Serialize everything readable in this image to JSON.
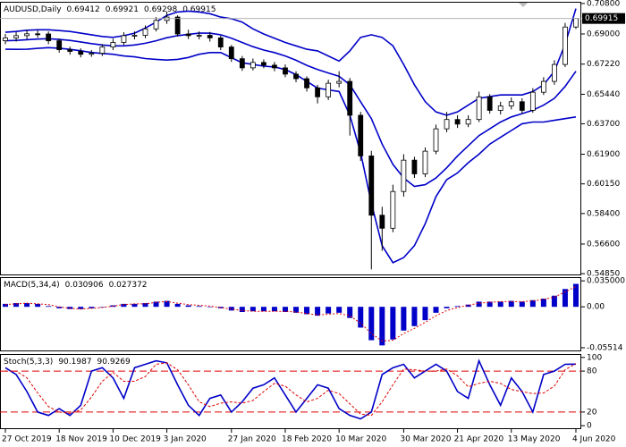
{
  "chart_data": [
    {
      "type": "candlestick",
      "title": "AUDUSD,Daily",
      "categories": [
        "27 Oct 2019",
        null,
        null,
        null,
        null,
        "18 Nov 2019",
        null,
        null,
        null,
        null,
        "10 Dec 2019",
        null,
        null,
        null,
        null,
        "3 Jan 2020",
        null,
        null,
        null,
        null,
        null,
        "27 Jan 2020",
        null,
        null,
        null,
        null,
        "18 Feb 2020",
        null,
        null,
        null,
        null,
        "10 Mar 2020",
        null,
        null,
        null,
        null,
        null,
        "30 Mar 2020",
        null,
        null,
        null,
        null,
        "21 Apr 2020",
        null,
        null,
        null,
        null,
        "13 May 2020",
        null,
        null,
        null,
        null,
        null,
        "4 Jun 2020"
      ],
      "open": [
        0.686,
        0.6877,
        0.689,
        0.6901,
        0.69,
        0.686,
        0.6807,
        0.6797,
        0.678,
        0.6786,
        0.6823,
        0.685,
        0.689,
        0.6892,
        0.693,
        0.698,
        0.7,
        0.69,
        0.689,
        0.6892,
        0.6877,
        0.6823,
        0.6754,
        0.67,
        0.6732,
        0.6716,
        0.67,
        0.6663,
        0.6636,
        0.6582,
        0.6529,
        0.6609,
        0.662,
        0.642,
        0.618,
        0.583,
        0.5753,
        0.597,
        0.6155,
        0.6074,
        0.6208,
        0.634,
        0.6395,
        0.6368,
        0.6395,
        0.6529,
        0.6449,
        0.6475,
        0.65,
        0.6449,
        0.6556,
        0.662,
        0.672,
        0.69412
      ],
      "high": [
        0.69,
        0.6912,
        0.6925,
        0.6922,
        0.6915,
        0.6872,
        0.6825,
        0.6815,
        0.6805,
        0.684,
        0.6872,
        0.691,
        0.6915,
        0.695,
        0.7,
        0.7032,
        0.701,
        0.6925,
        0.6915,
        0.6912,
        0.689,
        0.6835,
        0.677,
        0.6755,
        0.675,
        0.6735,
        0.672,
        0.668,
        0.665,
        0.66,
        0.663,
        0.668,
        0.664,
        0.644,
        0.621,
        0.588,
        0.601,
        0.619,
        0.6175,
        0.623,
        0.6365,
        0.644,
        0.642,
        0.642,
        0.656,
        0.6545,
        0.65,
        0.6525,
        0.652,
        0.658,
        0.6645,
        0.6745,
        0.6965,
        0.69921
      ],
      "low": [
        0.684,
        0.6855,
        0.6868,
        0.6878,
        0.684,
        0.679,
        0.6778,
        0.6762,
        0.6765,
        0.677,
        0.6805,
        0.6835,
        0.6868,
        0.6875,
        0.6915,
        0.696,
        0.6885,
        0.687,
        0.6868,
        0.6855,
        0.6805,
        0.6735,
        0.6682,
        0.6685,
        0.6698,
        0.668,
        0.6645,
        0.6615,
        0.656,
        0.649,
        0.651,
        0.6585,
        0.63,
        0.615,
        0.551,
        0.562,
        0.573,
        0.594,
        0.605,
        0.6055,
        0.619,
        0.632,
        0.6345,
        0.635,
        0.638,
        0.643,
        0.6425,
        0.6455,
        0.643,
        0.6435,
        0.654,
        0.66,
        0.6705,
        0.69298
      ],
      "close": [
        0.6877,
        0.689,
        0.6901,
        0.69,
        0.686,
        0.6807,
        0.6797,
        0.678,
        0.6786,
        0.6823,
        0.685,
        0.689,
        0.6892,
        0.693,
        0.698,
        0.7,
        0.69,
        0.689,
        0.6892,
        0.6877,
        0.6823,
        0.6754,
        0.67,
        0.6732,
        0.6716,
        0.67,
        0.6663,
        0.6636,
        0.6582,
        0.6529,
        0.6609,
        0.662,
        0.642,
        0.618,
        0.583,
        0.5753,
        0.597,
        0.6155,
        0.6074,
        0.6208,
        0.634,
        0.6395,
        0.6368,
        0.6395,
        0.6529,
        0.6449,
        0.6475,
        0.65,
        0.6449,
        0.6556,
        0.662,
        0.672,
        0.6941,
        0.69915
      ],
      "series": [
        {
          "color": "#0000c8",
          "values": [
            0.691,
            0.6915,
            0.6922,
            0.6925,
            0.6925,
            0.692,
            0.6915,
            0.6905,
            0.6895,
            0.6885,
            0.688,
            0.689,
            0.6905,
            0.6935,
            0.697,
            0.701,
            0.703,
            0.7035,
            0.703,
            0.702,
            0.7,
            0.699,
            0.697,
            0.693,
            0.69,
            0.6875,
            0.685,
            0.683,
            0.681,
            0.68,
            0.677,
            0.674,
            0.68,
            0.688,
            0.6895,
            0.688,
            0.683,
            0.672,
            0.66,
            0.65,
            0.644,
            0.642,
            0.644,
            0.648,
            0.652,
            0.653,
            0.654,
            0.654,
            0.654,
            0.656,
            0.66,
            0.668,
            0.684,
            0.705
          ]
        },
        {
          "color": "#0000c8",
          "values": [
            0.686,
            0.6862,
            0.6866,
            0.687,
            0.6872,
            0.6868,
            0.6862,
            0.6853,
            0.6843,
            0.6835,
            0.683,
            0.683,
            0.6835,
            0.6845,
            0.686,
            0.6878,
            0.689,
            0.6898,
            0.6905,
            0.6905,
            0.6895,
            0.6875,
            0.685,
            0.6825,
            0.6805,
            0.679,
            0.677,
            0.6745,
            0.6715,
            0.669,
            0.667,
            0.665,
            0.66,
            0.65,
            0.64,
            0.625,
            0.613,
            0.605,
            0.6,
            0.601,
            0.605,
            0.611,
            0.618,
            0.624,
            0.63,
            0.634,
            0.638,
            0.641,
            0.643,
            0.645,
            0.648,
            0.652,
            0.659,
            0.668
          ]
        },
        {
          "color": "#0000c8",
          "values": [
            0.681,
            0.6809,
            0.681,
            0.6815,
            0.6819,
            0.6816,
            0.6809,
            0.6801,
            0.6791,
            0.6785,
            0.678,
            0.677,
            0.6765,
            0.6755,
            0.675,
            0.6746,
            0.675,
            0.6761,
            0.678,
            0.679,
            0.679,
            0.676,
            0.673,
            0.672,
            0.671,
            0.6705,
            0.669,
            0.666,
            0.662,
            0.658,
            0.657,
            0.656,
            0.642,
            0.62,
            0.59,
            0.565,
            0.555,
            0.558,
            0.565,
            0.578,
            0.594,
            0.604,
            0.608,
            0.614,
            0.619,
            0.625,
            0.629,
            0.633,
            0.637,
            0.638,
            0.638,
            0.639,
            0.64,
            0.641
          ]
        }
      ],
      "ylim": [
        0.5475,
        0.709
      ],
      "yticks": [
        {
          "value": 0.708,
          "label": "0.70800"
        },
        {
          "value": 0.69,
          "label": "0.69000"
        },
        {
          "value": 0.6722,
          "label": "0.67220"
        },
        {
          "value": 0.6544,
          "label": "0.65440"
        },
        {
          "value": 0.637,
          "label": "0.63700"
        },
        {
          "value": 0.619,
          "label": "0.61900"
        },
        {
          "value": 0.6015,
          "label": "0.60150"
        },
        {
          "value": 0.584,
          "label": "0.58400"
        },
        {
          "value": 0.566,
          "label": "0.56600"
        },
        {
          "value": 0.5485,
          "label": "0.54850"
        }
      ]
    },
    {
      "type": "macd",
      "title": "MACD(5,34,4)",
      "series": [
        {
          "color": "#0000c8",
          "values": [
            0.004,
            0.005,
            0.005,
            0.004,
            0.001,
            -0.002,
            -0.003,
            -0.003,
            -0.002,
            0.0,
            0.002,
            0.004,
            0.004,
            0.005,
            0.007,
            0.008,
            0.004,
            0.002,
            0.001,
            0.0,
            -0.002,
            -0.005,
            -0.007,
            -0.006,
            -0.006,
            -0.006,
            -0.007,
            -0.008,
            -0.01,
            -0.012,
            -0.009,
            -0.008,
            -0.015,
            -0.028,
            -0.045,
            -0.052,
            -0.044,
            -0.032,
            -0.026,
            -0.018,
            -0.008,
            -0.002,
            0.001,
            0.003,
            0.007,
            0.007,
            0.007,
            0.008,
            0.007,
            0.009,
            0.011,
            0.015,
            0.024,
            0.030906
          ]
        },
        {
          "color": "#e00000",
          "values": [
            0.003,
            0.004,
            0.005,
            0.004,
            0.003,
            0.0,
            -0.002,
            -0.003,
            -0.002,
            -0.001,
            0.001,
            0.003,
            0.004,
            0.004,
            0.006,
            0.007,
            0.005,
            0.003,
            0.002,
            0.001,
            -0.001,
            -0.003,
            -0.005,
            -0.006,
            -0.006,
            -0.006,
            -0.006,
            -0.007,
            -0.009,
            -0.011,
            -0.01,
            -0.009,
            -0.012,
            -0.022,
            -0.036,
            -0.046,
            -0.045,
            -0.036,
            -0.029,
            -0.021,
            -0.012,
            -0.005,
            -0.001,
            0.002,
            0.005,
            0.006,
            0.007,
            0.007,
            0.007,
            0.008,
            0.01,
            0.013,
            0.02,
            0.027372
          ]
        }
      ],
      "ylim": [
        -0.06,
        0.04
      ],
      "yticks": [
        {
          "value": 0.035,
          "label": "0.035000"
        },
        {
          "value": 0,
          "label": "0.00"
        },
        -0.05514
      ]
    },
    {
      "type": "stochastic",
      "title": "Stoch(5,3,3)",
      "series": [
        {
          "color": "#0000c8",
          "values": [
            85,
            75,
            50,
            20,
            15,
            25,
            15,
            30,
            80,
            85,
            70,
            40,
            85,
            90,
            95,
            92,
            60,
            30,
            15,
            40,
            45,
            20,
            35,
            55,
            60,
            70,
            45,
            20,
            40,
            60,
            55,
            25,
            15,
            10,
            20,
            75,
            85,
            90,
            70,
            80,
            90,
            80,
            50,
            40,
            95,
            60,
            30,
            70,
            50,
            20,
            75,
            80,
            90,
            90.1987
          ]
        },
        {
          "color": "#e00000",
          "values": [
            80,
            80,
            70,
            48,
            28,
            20,
            18,
            23,
            42,
            65,
            78,
            65,
            65,
            72,
            90,
            92,
            82,
            60,
            35,
            28,
            33,
            35,
            33,
            37,
            50,
            62,
            58,
            45,
            35,
            40,
            52,
            47,
            32,
            17,
            15,
            35,
            60,
            83,
            82,
            80,
            80,
            83,
            73,
            57,
            62,
            65,
            62,
            53,
            50,
            47,
            48,
            58,
            82,
            90.9269
          ]
        }
      ],
      "levels": [
        80,
        20
      ],
      "levels_color": "#e00000",
      "ylim": [
        -5,
        105
      ],
      "yticks": [
        100,
        80,
        20,
        0
      ]
    }
  ]
}
